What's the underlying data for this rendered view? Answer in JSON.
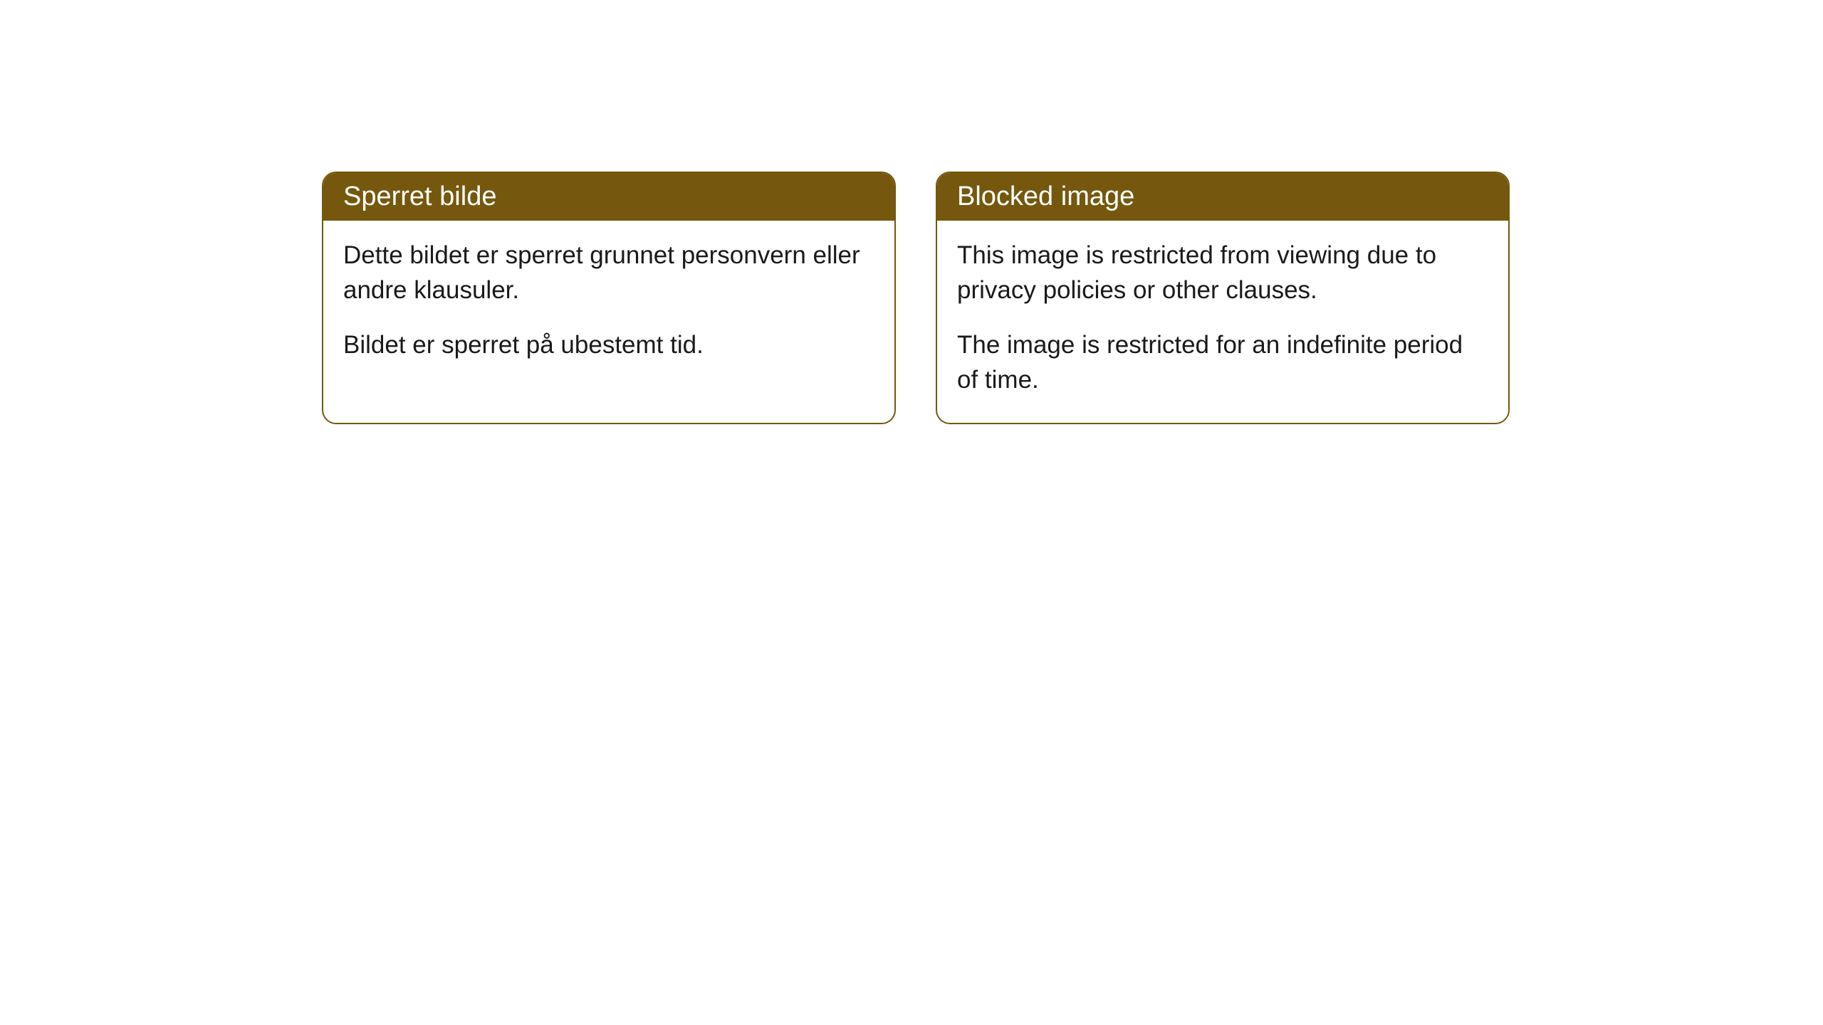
{
  "cards": [
    {
      "title": "Sperret bilde",
      "paragraph1": "Dette bildet er sperret grunnet personvern eller andre klausuler.",
      "paragraph2": "Bildet er sperret på ubestemt tid."
    },
    {
      "title": "Blocked image",
      "paragraph1": "This image is restricted from viewing due to privacy policies or other clauses.",
      "paragraph2": "The image is restricted for an indefinite period of time."
    }
  ],
  "style": {
    "header_background": "#75580d",
    "header_text_color": "#ffffff",
    "border_color": "#75580d",
    "body_text_color": "#1a1a1a",
    "card_background": "#ffffff",
    "page_background": "#ffffff",
    "border_radius": 20,
    "header_fontsize": 38,
    "body_fontsize": 35
  }
}
